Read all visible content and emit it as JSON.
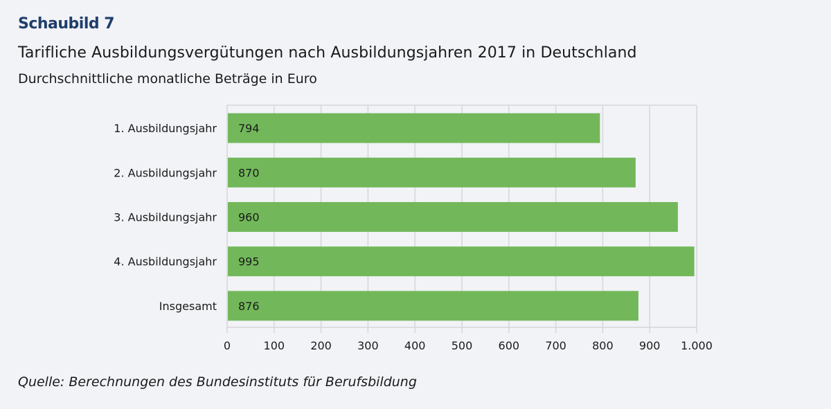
{
  "header": {
    "figure_label": "Schaubild 7",
    "title": "Tarifliche Ausbildungsvergütungen nach Ausbildungsjahren 2017 in Deutschland",
    "subtitle": "Durchschnittliche monatliche Beträge in Euro"
  },
  "footer": {
    "source": "Quelle: Berechnungen des Bundesinstituts für Berufsbildung"
  },
  "colors": {
    "bar": "#72b85a",
    "grid": "#d6d6da",
    "title_accent": "#1f3e6b",
    "background": "#f2f3f7"
  },
  "chart_data": {
    "type": "bar",
    "orientation": "horizontal",
    "title": "Tarifliche Ausbildungsvergütungen nach Ausbildungsjahren 2017 in Deutschland",
    "subtitle": "Durchschnittliche monatliche Beträge in Euro",
    "categories": [
      "1. Ausbildungsjahr",
      "2. Ausbildungsjahr",
      "3. Ausbildungsjahr",
      "4. Ausbildungsjahr",
      "Insgesamt"
    ],
    "values": [
      794,
      870,
      960,
      995,
      876
    ],
    "data_labels": [
      "794",
      "870",
      "960",
      "995",
      "876"
    ],
    "xlabel": "",
    "ylabel": "",
    "xlim": [
      0,
      1000
    ],
    "xticks": [
      0,
      100,
      200,
      300,
      400,
      500,
      600,
      700,
      800,
      900,
      1000
    ],
    "xtick_labels": [
      "0",
      "100",
      "200",
      "300",
      "400",
      "500",
      "600",
      "700",
      "800",
      "900",
      "1.000"
    ],
    "grid": true,
    "legend": "none"
  }
}
